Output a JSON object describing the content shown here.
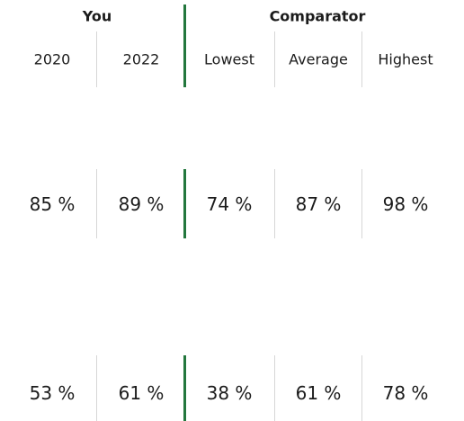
{
  "table": {
    "groups": [
      "You",
      "Comparator"
    ],
    "columns": [
      "2020",
      "2022",
      "Lowest",
      "Average",
      "Highest"
    ],
    "rows": [
      [
        "85 %",
        "89 %",
        "74 %",
        "87 %",
        "98 %"
      ],
      [
        "53 %",
        "61 %",
        "38 %",
        "61 %",
        "78 %"
      ]
    ]
  }
}
